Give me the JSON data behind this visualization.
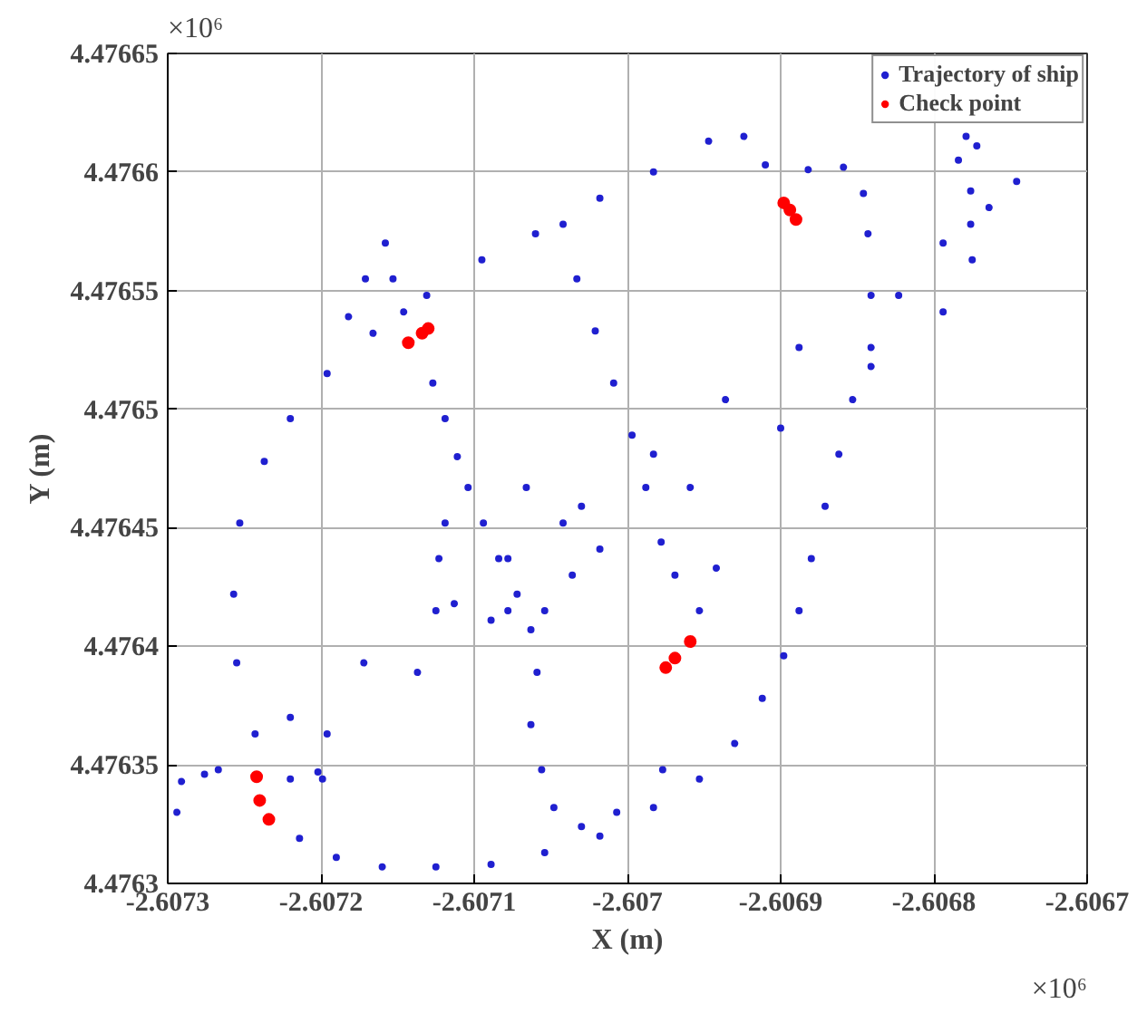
{
  "chart_data": {
    "type": "scatter",
    "xlabel": "X (m)",
    "ylabel": "Y (m)",
    "annotations": [
      "×10⁶",
      "×10⁶"
    ],
    "xlim": [
      -2.6073,
      -2.6067
    ],
    "ylim": [
      4.4763,
      4.47665
    ],
    "xticks": [
      -2.6073,
      -2.6072,
      -2.6071,
      -2.607,
      -2.6069,
      -2.6068,
      -2.6067
    ],
    "yticks": [
      4.4763,
      4.47635,
      4.4764,
      4.47645,
      4.4765,
      4.47655,
      4.4766,
      4.47665
    ],
    "grid": true,
    "legend": "top right",
    "marker": "circle",
    "series": [
      {
        "name": "Trajectory of ship",
        "color": "#2020d0",
        "x": [
          -2.607214,
          -2.60719,
          -2.60716,
          -2.607125,
          -2.607089,
          -2.607054,
          -2.607018,
          -2.606983,
          -2.606953,
          -2.60693,
          -2.606912,
          -2.606898,
          -2.606888,
          -2.60688,
          -2.606871,
          -2.606862,
          -2.606853,
          -2.606841,
          -2.606823,
          -2.607267,
          -2.60722,
          -2.607172,
          -2.607125,
          -2.607078,
          -2.60703,
          -2.606983,
          -2.606936,
          -2.606888,
          -2.606841,
          -2.606794,
          -2.606764,
          -2.606746,
          -2.606784,
          -2.606779,
          -2.606772,
          -2.606776,
          -2.606776,
          -2.606775,
          -2.607196,
          -2.607137,
          -2.607078,
          -2.607018,
          -2.606959,
          -2.6069,
          -2.606841,
          -2.606794,
          -2.607243,
          -2.607255,
          -2.607257,
          -2.607253,
          -2.607237,
          -2.60722,
          -2.607196,
          -2.607166,
          -2.607131,
          -2.607095,
          -2.60706,
          -2.607018,
          -2.606983,
          -2.606947,
          -2.606924,
          -2.60691,
          -2.606882,
          -2.606859,
          -2.606846,
          -2.606843,
          -2.607158,
          -2.607153,
          -2.607146,
          -2.607127,
          -2.607119,
          -2.607111,
          -2.607104,
          -2.607094,
          -2.607084,
          -2.607072,
          -2.607063,
          -2.607059,
          -2.607171,
          -2.607182,
          -2.607042,
          -2.607033,
          -2.607021,
          -2.607009,
          -2.606997,
          -2.606988,
          -2.606978,
          -2.606969,
          -2.606953,
          -2.606942,
          -2.607119,
          -2.607123,
          -2.607113,
          -2.607089,
          -2.607054,
          -2.607036,
          -2.607042,
          -2.607066,
          -2.607063,
          -2.607056,
          -2.607048,
          -2.60703,
          -2.607007,
          -2.606977,
          -2.607294,
          -2.607291,
          -2.607276,
          -2.60722,
          -2.607202,
          -2.607199
        ],
        "values": [
          4.476319,
          4.476311,
          4.476307,
          4.476307,
          4.476308,
          4.476313,
          4.47632,
          4.476332,
          4.476344,
          4.476359,
          4.476378,
          4.476396,
          4.476415,
          4.476437,
          4.476459,
          4.476481,
          4.476504,
          4.476526,
          4.476548,
          4.476348,
          4.47637,
          4.476393,
          4.476415,
          4.476437,
          4.476459,
          4.476481,
          4.476504,
          4.476526,
          4.476548,
          4.47657,
          4.476585,
          4.476596,
          4.476605,
          4.476615,
          4.476611,
          4.476592,
          4.476578,
          4.476563,
          4.476363,
          4.476389,
          4.476415,
          4.476441,
          4.476467,
          4.476492,
          4.476518,
          4.476541,
          4.476363,
          4.476393,
          4.476422,
          4.476452,
          4.476478,
          4.476496,
          4.476515,
          4.476532,
          4.476548,
          4.476563,
          4.476574,
          4.476589,
          4.4766,
          4.476613,
          4.476615,
          4.476603,
          4.476601,
          4.476602,
          4.476591,
          4.476574,
          4.47657,
          4.476555,
          4.476541,
          4.476511,
          4.476496,
          4.47648,
          4.476467,
          4.476452,
          4.476437,
          4.476422,
          4.476407,
          4.476389,
          4.476555,
          4.476539,
          4.476578,
          4.476555,
          4.476533,
          4.476511,
          4.476489,
          4.476467,
          4.476444,
          4.47643,
          4.476415,
          4.476433,
          4.476452,
          4.476437,
          4.476418,
          4.476411,
          4.476415,
          4.47643,
          4.476452,
          4.476467,
          4.476367,
          4.476348,
          4.476332,
          4.476324,
          4.47633,
          4.476348,
          4.47633,
          4.476343,
          4.476346,
          4.476344,
          4.476347,
          4.476344
        ]
      },
      {
        "name": "Check point",
        "color": "#ff0000",
        "x": [
          -2.607143,
          -2.607134,
          -2.60713,
          -2.606898,
          -2.606894,
          -2.60689,
          -2.606975,
          -2.606969,
          -2.606959,
          -2.607242,
          -2.60724,
          -2.607234
        ],
        "values": [
          4.476528,
          4.476532,
          4.476534,
          4.476587,
          4.476584,
          4.47658,
          4.476391,
          4.476395,
          4.476402,
          4.476345,
          4.476335,
          4.476327
        ]
      }
    ]
  }
}
